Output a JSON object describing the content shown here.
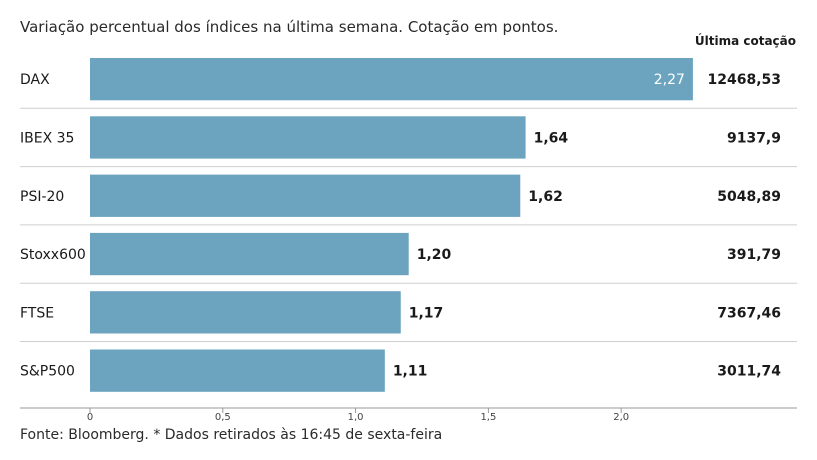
{
  "subtitle": "Variação percentual dos índices na última semana. Cotação em pontos.",
  "column_header": "Última cotação",
  "footer": "Fonte: Bloomberg.  * Dados retirados às 16:45 de sexta-feira",
  "colors": {
    "bar": "#6ca4bf",
    "separator": "#cfcfcf",
    "axis": "#999999",
    "inside_label": "#ffffff",
    "text": "#1a1a1a"
  },
  "chart_data": {
    "type": "bar",
    "orientation": "horizontal",
    "title": "Variação percentual dos índices na última semana. Cotação em pontos.",
    "categories": [
      "DAX",
      "IBEX 35",
      "PSI-20",
      "Stoxx600",
      "FTSE",
      "S&P500"
    ],
    "values": [
      2.27,
      1.64,
      1.62,
      1.2,
      1.17,
      1.11
    ],
    "value_labels": [
      "2,27",
      "1,64",
      "1,62",
      "1,20",
      "1,17",
      "1,11"
    ],
    "last_quote_header": "Última cotação",
    "last_quotes": [
      "12468,53",
      "9137,9",
      "5048,89",
      "391,79",
      "7367,46",
      "3011,74"
    ],
    "xlim": [
      0,
      2.65
    ],
    "x_ticks": [
      0,
      0.5,
      1.0,
      1.5,
      2.0
    ],
    "x_tick_labels": [
      "0",
      "0,5",
      "1,0",
      "1,5",
      "2,0"
    ],
    "xlabel": "",
    "ylabel": "",
    "grid": false,
    "legend": "none"
  }
}
